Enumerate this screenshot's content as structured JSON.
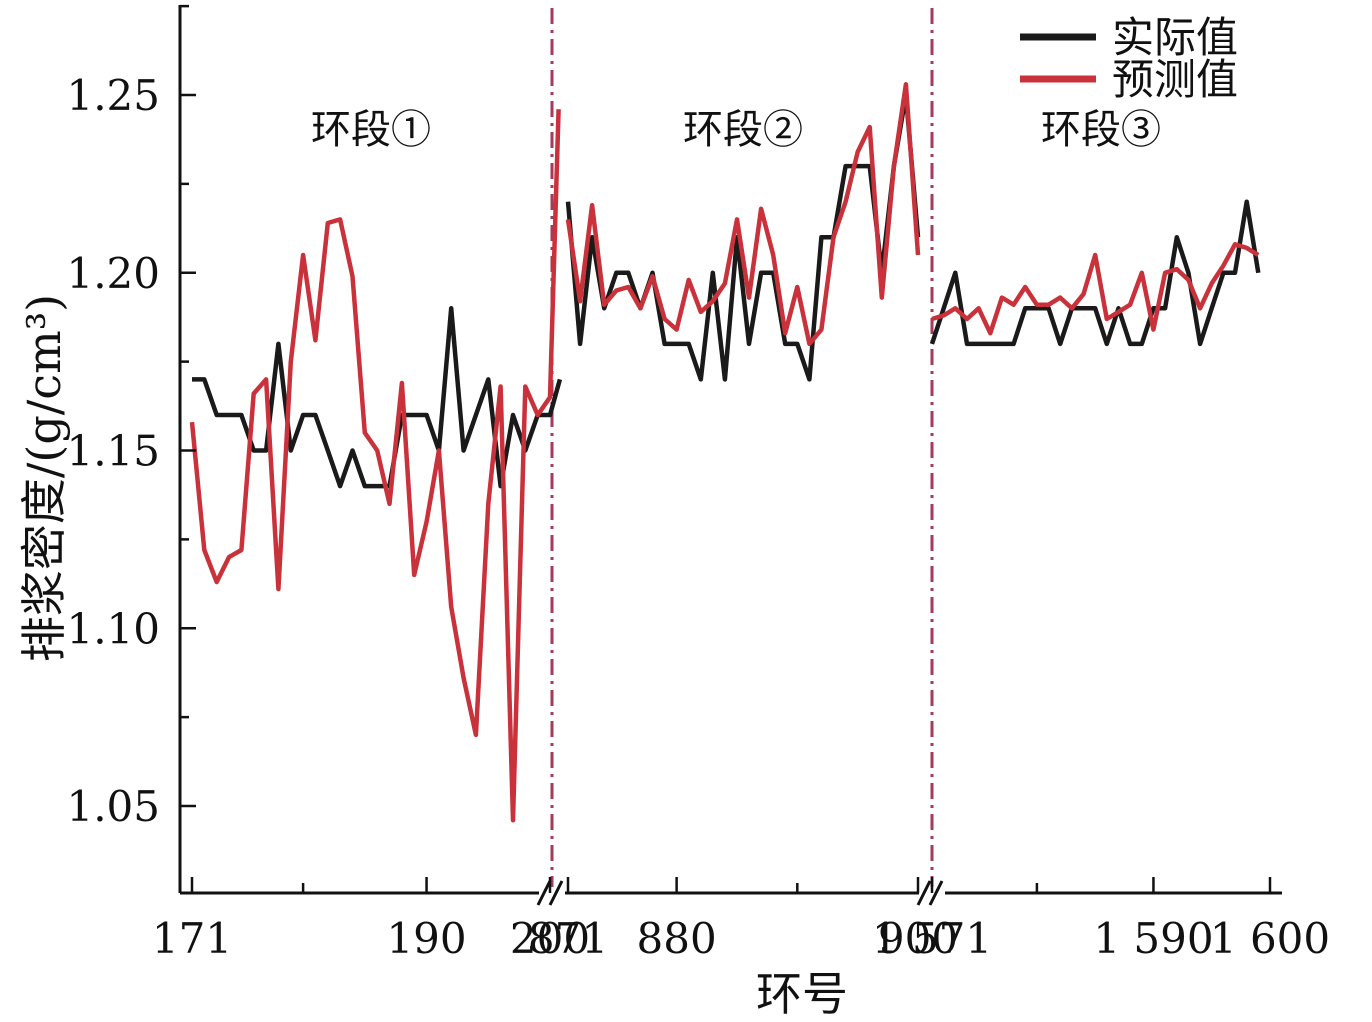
{
  "chart_data": {
    "type": "line",
    "ylabel": "排浆密度/(g/cm³)",
    "xlabel": "环号",
    "ylim": [
      1.025,
      1.275
    ],
    "y_ticks": [
      "1.05",
      "1.10",
      "1.15",
      "1.20",
      "1.25"
    ],
    "y_tick_values": [
      1.05,
      1.1,
      1.15,
      1.2,
      1.25
    ],
    "grid": false,
    "legend_position": "top-right",
    "legend": [
      {
        "label": "实际值",
        "color": "#1a1a1a"
      },
      {
        "label": "预测值",
        "color": "#c9323a"
      }
    ],
    "divider_color": "#a63a5a",
    "segments": [
      {
        "label": "环段①",
        "x_range": [
          171,
          200
        ],
        "x_ticks": [
          {
            "value": 171,
            "label": "171"
          },
          {
            "value": 180,
            "label": ""
          },
          {
            "value": 190,
            "label": "190"
          },
          {
            "value": 200,
            "label": "200"
          }
        ],
        "actual": [
          [
            171,
            1.17
          ],
          [
            172,
            1.17
          ],
          [
            173,
            1.16
          ],
          [
            174,
            1.16
          ],
          [
            175,
            1.16
          ],
          [
            176,
            1.15
          ],
          [
            177,
            1.15
          ],
          [
            178,
            1.18
          ],
          [
            179,
            1.15
          ],
          [
            180,
            1.16
          ],
          [
            181,
            1.16
          ],
          [
            182,
            1.15
          ],
          [
            183,
            1.14
          ],
          [
            184,
            1.15
          ],
          [
            185,
            1.14
          ],
          [
            186,
            1.14
          ],
          [
            187,
            1.14
          ],
          [
            188,
            1.16
          ],
          [
            189,
            1.16
          ],
          [
            190,
            1.16
          ],
          [
            191,
            1.15
          ],
          [
            192,
            1.19
          ],
          [
            193,
            1.15
          ],
          [
            194,
            1.16
          ],
          [
            195,
            1.17
          ],
          [
            196,
            1.14
          ],
          [
            197,
            1.16
          ],
          [
            198,
            1.15
          ],
          [
            199,
            1.16
          ],
          [
            200,
            1.16
          ],
          [
            200.8,
            1.17
          ]
        ],
        "predicted": [
          [
            171,
            1.158
          ],
          [
            172,
            1.122
          ],
          [
            173,
            1.113
          ],
          [
            174,
            1.12
          ],
          [
            175,
            1.122
          ],
          [
            176,
            1.166
          ],
          [
            177,
            1.17
          ],
          [
            178,
            1.111
          ],
          [
            179,
            1.175
          ],
          [
            180,
            1.205
          ],
          [
            181,
            1.181
          ],
          [
            182,
            1.214
          ],
          [
            183,
            1.215
          ],
          [
            184,
            1.199
          ],
          [
            185,
            1.155
          ],
          [
            186,
            1.15
          ],
          [
            187,
            1.135
          ],
          [
            188,
            1.169
          ],
          [
            189,
            1.115
          ],
          [
            190,
            1.13
          ],
          [
            191,
            1.15
          ],
          [
            192,
            1.106
          ],
          [
            193,
            1.086
          ],
          [
            194,
            1.07
          ],
          [
            195,
            1.135
          ],
          [
            196,
            1.168
          ],
          [
            197,
            1.046
          ],
          [
            198,
            1.168
          ],
          [
            199,
            1.16
          ],
          [
            200,
            1.165
          ],
          [
            200.7,
            1.246
          ]
        ]
      },
      {
        "label": "环段②",
        "x_range": [
          871,
          900
        ],
        "x_ticks": [
          {
            "value": 871,
            "label": "871"
          },
          {
            "value": 880,
            "label": "880"
          },
          {
            "value": 890,
            "label": ""
          },
          {
            "value": 900,
            "label": "900"
          }
        ],
        "actual": [
          [
            871,
            1.22
          ],
          [
            872,
            1.18
          ],
          [
            873,
            1.21
          ],
          [
            874,
            1.19
          ],
          [
            875,
            1.2
          ],
          [
            876,
            1.2
          ],
          [
            877,
            1.19
          ],
          [
            878,
            1.2
          ],
          [
            879,
            1.18
          ],
          [
            880,
            1.18
          ],
          [
            881,
            1.18
          ],
          [
            882,
            1.17
          ],
          [
            883,
            1.2
          ],
          [
            884,
            1.17
          ],
          [
            885,
            1.21
          ],
          [
            886,
            1.18
          ],
          [
            887,
            1.2
          ],
          [
            888,
            1.2
          ],
          [
            889,
            1.18
          ],
          [
            890,
            1.18
          ],
          [
            891,
            1.17
          ],
          [
            892,
            1.21
          ],
          [
            893,
            1.21
          ],
          [
            894,
            1.23
          ],
          [
            895,
            1.23
          ],
          [
            896,
            1.23
          ],
          [
            897,
            1.2
          ],
          [
            898,
            1.23
          ],
          [
            899,
            1.25
          ],
          [
            900,
            1.21
          ]
        ],
        "predicted": [
          [
            871,
            1.215
          ],
          [
            872,
            1.192
          ],
          [
            873,
            1.219
          ],
          [
            874,
            1.191
          ],
          [
            875,
            1.195
          ],
          [
            876,
            1.196
          ],
          [
            877,
            1.19
          ],
          [
            878,
            1.199
          ],
          [
            879,
            1.187
          ],
          [
            880,
            1.184
          ],
          [
            881,
            1.198
          ],
          [
            882,
            1.189
          ],
          [
            883,
            1.192
          ],
          [
            884,
            1.197
          ],
          [
            885,
            1.215
          ],
          [
            886,
            1.193
          ],
          [
            887,
            1.218
          ],
          [
            888,
            1.205
          ],
          [
            889,
            1.183
          ],
          [
            890,
            1.196
          ],
          [
            891,
            1.18
          ],
          [
            892,
            1.184
          ],
          [
            893,
            1.21
          ],
          [
            894,
            1.22
          ],
          [
            895,
            1.234
          ],
          [
            896,
            1.241
          ],
          [
            897,
            1.193
          ],
          [
            898,
            1.23
          ],
          [
            899,
            1.253
          ],
          [
            900,
            1.205
          ]
        ]
      },
      {
        "label": "环段③",
        "x_range": [
          1571,
          1600
        ],
        "x_ticks": [
          {
            "value": 1571,
            "label": "1 571"
          },
          {
            "value": 1580,
            "label": ""
          },
          {
            "value": 1590,
            "label": "1 590"
          },
          {
            "value": 1600,
            "label": "1 600"
          }
        ],
        "actual": [
          [
            1571,
            1.18
          ],
          [
            1572,
            1.19
          ],
          [
            1573,
            1.2
          ],
          [
            1574,
            1.18
          ],
          [
            1575,
            1.18
          ],
          [
            1576,
            1.18
          ],
          [
            1577,
            1.18
          ],
          [
            1578,
            1.18
          ],
          [
            1579,
            1.19
          ],
          [
            1580,
            1.19
          ],
          [
            1581,
            1.19
          ],
          [
            1582,
            1.18
          ],
          [
            1583,
            1.19
          ],
          [
            1584,
            1.19
          ],
          [
            1585,
            1.19
          ],
          [
            1586,
            1.18
          ],
          [
            1587,
            1.19
          ],
          [
            1588,
            1.18
          ],
          [
            1589,
            1.18
          ],
          [
            1590,
            1.19
          ],
          [
            1591,
            1.19
          ],
          [
            1592,
            1.21
          ],
          [
            1593,
            1.2
          ],
          [
            1594,
            1.18
          ],
          [
            1595,
            1.19
          ],
          [
            1596,
            1.2
          ],
          [
            1597,
            1.2
          ],
          [
            1598,
            1.22
          ],
          [
            1599,
            1.2
          ]
        ],
        "predicted": [
          [
            1571,
            1.187
          ],
          [
            1572,
            1.188
          ],
          [
            1573,
            1.19
          ],
          [
            1574,
            1.187
          ],
          [
            1575,
            1.19
          ],
          [
            1576,
            1.183
          ],
          [
            1577,
            1.193
          ],
          [
            1578,
            1.191
          ],
          [
            1579,
            1.196
          ],
          [
            1580,
            1.191
          ],
          [
            1581,
            1.191
          ],
          [
            1582,
            1.193
          ],
          [
            1583,
            1.19
          ],
          [
            1584,
            1.194
          ],
          [
            1585,
            1.205
          ],
          [
            1586,
            1.187
          ],
          [
            1587,
            1.189
          ],
          [
            1588,
            1.191
          ],
          [
            1589,
            1.2
          ],
          [
            1590,
            1.184
          ],
          [
            1591,
            1.2
          ],
          [
            1592,
            1.201
          ],
          [
            1593,
            1.198
          ],
          [
            1594,
            1.19
          ],
          [
            1595,
            1.197
          ],
          [
            1596,
            1.202
          ],
          [
            1597,
            1.208
          ],
          [
            1598,
            1.207
          ],
          [
            1599,
            1.205
          ]
        ]
      }
    ]
  }
}
